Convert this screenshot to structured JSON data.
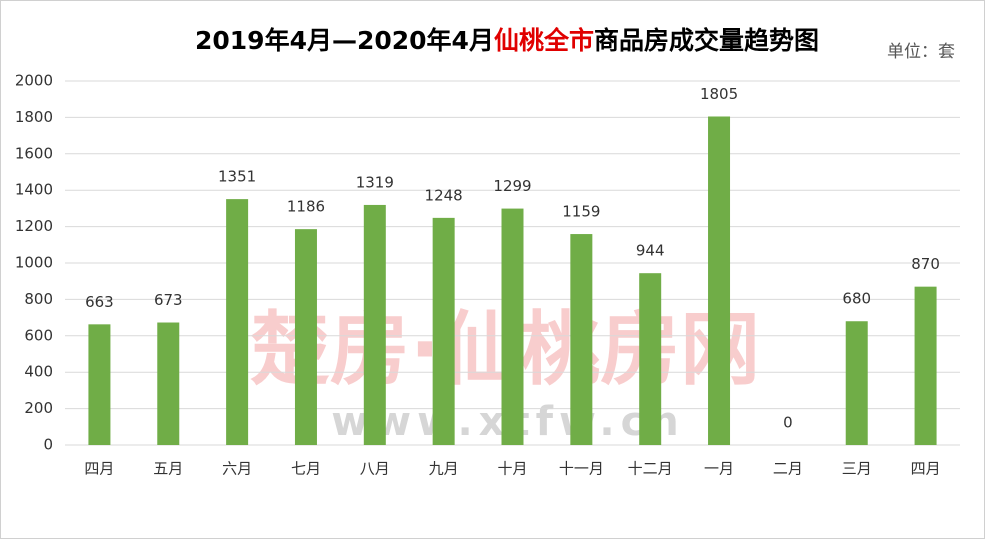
{
  "chart_data": {
    "type": "bar",
    "title": [
      {
        "text": "2019年4月—2020年4月",
        "color": "#000000"
      },
      {
        "text": "仙桃全市",
        "color": "#e00000"
      },
      {
        "text": "商品房成交量趋势图",
        "color": "#000000"
      }
    ],
    "unit": "单位：套",
    "watermark": [
      "楚房·仙桃房网",
      "www.xtfw.cn"
    ],
    "categories": [
      "四月",
      "五月",
      "六月",
      "七月",
      "八月",
      "九月",
      "十月",
      "十一月",
      "十二月",
      "一月",
      "二月",
      "三月",
      "四月"
    ],
    "values": [
      663,
      673,
      1351,
      1186,
      1319,
      1248,
      1299,
      1159,
      944,
      1805,
      0,
      680,
      870
    ],
    "color": "#70ad47",
    "ylim": [
      0,
      2000
    ],
    "yticks": [
      0,
      200,
      400,
      600,
      800,
      1000,
      1200,
      1400,
      1600,
      1800,
      2000
    ],
    "grid": true
  }
}
